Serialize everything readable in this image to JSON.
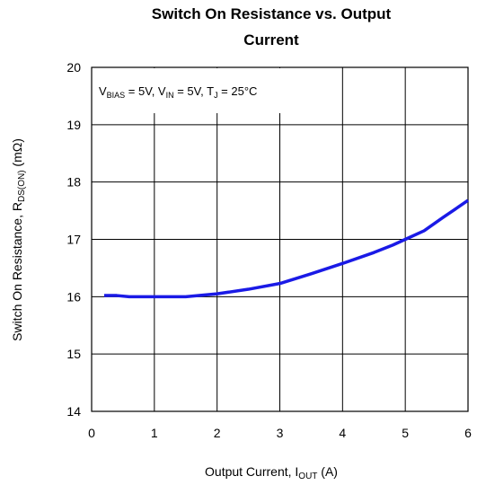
{
  "chart_data": {
    "type": "line",
    "title": [
      "Switch On Resistance vs. Output",
      "Current"
    ],
    "annotation": [
      {
        "text": "V"
      },
      {
        "sub": "BIAS"
      },
      {
        "text": " = 5V, V"
      },
      {
        "sub": "IN"
      },
      {
        "text": " = 5V, T"
      },
      {
        "sub": "J"
      },
      {
        "text": " = 25°C"
      }
    ],
    "x_label": [
      {
        "text": "Output Current, I"
      },
      {
        "sub": "OUT"
      },
      {
        "text": " (A)"
      }
    ],
    "y_label": [
      {
        "text": "Switch On Resistance, R"
      },
      {
        "sub": "DS(ON)"
      },
      {
        "text": " (mΩ)"
      }
    ],
    "x": [
      0.2,
      0.4,
      0.6,
      1.0,
      1.5,
      2.0,
      2.5,
      3.0,
      3.5,
      4.0,
      4.5,
      4.8,
      5.0,
      5.3,
      5.6,
      6.0
    ],
    "series": [
      {
        "color": "#1a1ae6",
        "values": [
          16.02,
          16.02,
          16.0,
          16.0,
          16.0,
          16.05,
          16.13,
          16.23,
          16.4,
          16.58,
          16.77,
          16.9,
          17.0,
          17.15,
          17.38,
          17.68
        ]
      }
    ],
    "xlim": [
      0,
      6
    ],
    "xticks": [
      0,
      1,
      2,
      3,
      4,
      5,
      6
    ],
    "ylim": [
      14,
      20
    ],
    "yticks": [
      14,
      15,
      16,
      17,
      18,
      19,
      20
    ],
    "grid": true
  }
}
